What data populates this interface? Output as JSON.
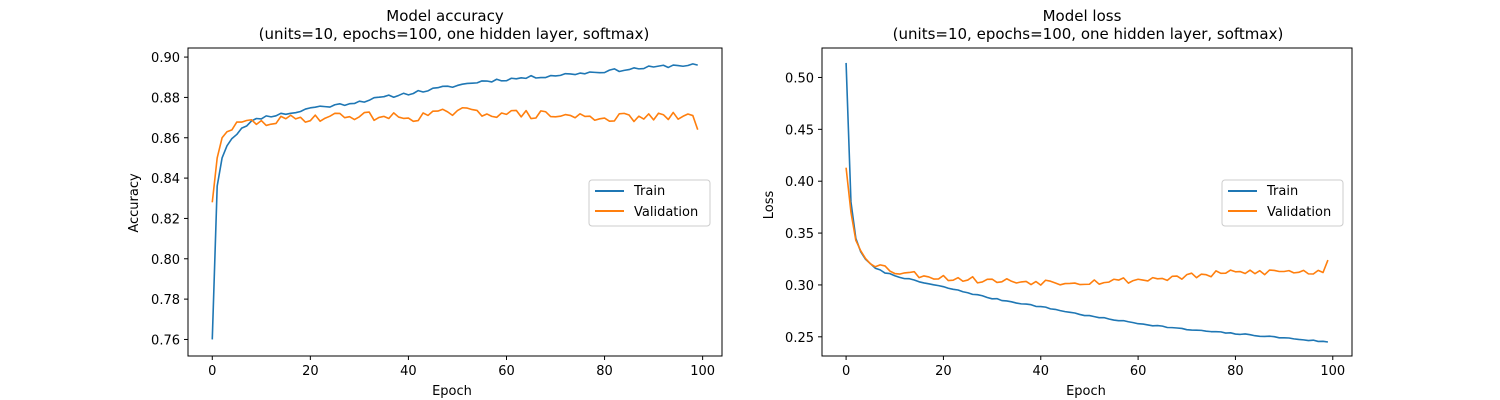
{
  "colors": {
    "train": "#1f77b4",
    "validation": "#ff7f0e"
  },
  "chart_data": [
    {
      "type": "line",
      "title": "Model accuracy",
      "subtitle": "(units=10, epochs=100, one hidden layer, softmax)",
      "xlabel": "Epoch",
      "ylabel": "Accuracy",
      "xlim": [
        -4.95,
        103.95
      ],
      "ylim": [
        0.7518,
        0.9045
      ],
      "xticks": [
        0,
        20,
        40,
        60,
        80,
        100
      ],
      "xtick_labels": [
        "0",
        "20",
        "40",
        "60",
        "80",
        "100"
      ],
      "yticks": [
        0.76,
        0.78,
        0.8,
        0.82,
        0.84,
        0.86,
        0.88,
        0.9
      ],
      "ytick_labels": [
        "0.76",
        "0.78",
        "0.80",
        "0.82",
        "0.84",
        "0.86",
        "0.88",
        "0.90"
      ],
      "legend_position": "center-right",
      "grid": false,
      "series": [
        {
          "name": "Train",
          "color": "#1f77b4",
          "knots": [
            [
              0,
              0.76
            ],
            [
              1,
              0.836
            ],
            [
              2,
              0.85
            ],
            [
              3,
              0.856
            ],
            [
              4,
              0.86
            ],
            [
              5,
              0.862
            ],
            [
              6,
              0.865
            ],
            [
              8,
              0.868
            ],
            [
              10,
              0.87
            ],
            [
              12,
              0.871
            ],
            [
              15,
              0.872
            ],
            [
              18,
              0.873
            ],
            [
              20,
              0.875
            ],
            [
              25,
              0.876
            ],
            [
              30,
              0.878
            ],
            [
              35,
              0.88
            ],
            [
              40,
              0.882
            ],
            [
              45,
              0.884
            ],
            [
              50,
              0.886
            ],
            [
              55,
              0.888
            ],
            [
              60,
              0.889
            ],
            [
              65,
              0.89
            ],
            [
              70,
              0.891
            ],
            [
              75,
              0.892
            ],
            [
              80,
              0.893
            ],
            [
              85,
              0.894
            ],
            [
              90,
              0.895
            ],
            [
              95,
              0.896
            ],
            [
              99,
              0.896
            ]
          ],
          "noise": 0.0008,
          "seed": 11
        },
        {
          "name": "Validation",
          "color": "#ff7f0e",
          "knots": [
            [
              0,
              0.828
            ],
            [
              1,
              0.85
            ],
            [
              2,
              0.86
            ],
            [
              3,
              0.863
            ],
            [
              4,
              0.865
            ],
            [
              5,
              0.866
            ],
            [
              6,
              0.867
            ],
            [
              8,
              0.868
            ],
            [
              10,
              0.867
            ],
            [
              15,
              0.869
            ],
            [
              20,
              0.87
            ],
            [
              30,
              0.871
            ],
            [
              40,
              0.87
            ],
            [
              50,
              0.873
            ],
            [
              60,
              0.872
            ],
            [
              70,
              0.871
            ],
            [
              80,
              0.87
            ],
            [
              90,
              0.87
            ],
            [
              98,
              0.871
            ],
            [
              99,
              0.864
            ]
          ],
          "noise": 0.0022,
          "seed": 29
        }
      ]
    },
    {
      "type": "line",
      "title": "Model loss",
      "subtitle": "(units=10, epochs=100, one hidden layer, softmax)",
      "xlabel": "Epoch",
      "ylabel": "Loss",
      "xlim": [
        -4.95,
        103.95
      ],
      "ylim": [
        0.2315,
        0.5284
      ],
      "xticks": [
        0,
        20,
        40,
        60,
        80,
        100
      ],
      "xtick_labels": [
        "0",
        "20",
        "40",
        "60",
        "80",
        "100"
      ],
      "yticks": [
        0.25,
        0.3,
        0.35,
        0.4,
        0.45,
        0.5
      ],
      "ytick_labels": [
        "0.25",
        "0.30",
        "0.35",
        "0.40",
        "0.45",
        "0.50"
      ],
      "legend_position": "center-right",
      "grid": false,
      "series": [
        {
          "name": "Train",
          "color": "#1f77b4",
          "knots": [
            [
              0,
              0.514
            ],
            [
              1,
              0.38
            ],
            [
              2,
              0.345
            ],
            [
              3,
              0.332
            ],
            [
              4,
              0.325
            ],
            [
              5,
              0.32
            ],
            [
              6,
              0.316
            ],
            [
              8,
              0.312
            ],
            [
              10,
              0.309
            ],
            [
              15,
              0.303
            ],
            [
              20,
              0.298
            ],
            [
              30,
              0.287
            ],
            [
              40,
              0.279
            ],
            [
              50,
              0.27
            ],
            [
              60,
              0.263
            ],
            [
              70,
              0.257
            ],
            [
              80,
              0.253
            ],
            [
              90,
              0.249
            ],
            [
              99,
              0.245
            ]
          ],
          "noise": 0.0006,
          "seed": 7
        },
        {
          "name": "Validation",
          "color": "#ff7f0e",
          "knots": [
            [
              0,
              0.413
            ],
            [
              1,
              0.37
            ],
            [
              2,
              0.343
            ],
            [
              3,
              0.333
            ],
            [
              4,
              0.327
            ],
            [
              5,
              0.323
            ],
            [
              6,
              0.32
            ],
            [
              8,
              0.317
            ],
            [
              10,
              0.313
            ],
            [
              15,
              0.31
            ],
            [
              20,
              0.307
            ],
            [
              30,
              0.304
            ],
            [
              40,
              0.303
            ],
            [
              50,
              0.303
            ],
            [
              60,
              0.305
            ],
            [
              70,
              0.308
            ],
            [
              80,
              0.312
            ],
            [
              90,
              0.313
            ],
            [
              98,
              0.312
            ],
            [
              99,
              0.324
            ]
          ],
          "noise": 0.0032,
          "seed": 53
        }
      ]
    }
  ]
}
